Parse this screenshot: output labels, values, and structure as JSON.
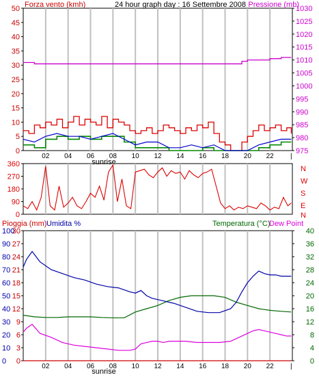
{
  "header": {
    "title": "24 hour graph day : 16 Settembre 2008",
    "wind_label": "Forza vento (kmh)",
    "pressure_label": "Pressione (mb)"
  },
  "lower_header": {
    "rain_label": "Pioggia (mm)",
    "humidity_label": "Umidita %",
    "temp_label": "Temperatura (°C)",
    "dew_label": "Dew Point"
  },
  "compass_letters": [
    "N",
    "W",
    "S",
    "E",
    "N"
  ],
  "sunrise_label": "sunrise",
  "colors": {
    "wind": "#cc0000",
    "gust": "#dd0000",
    "wind_avg": "#008800",
    "wind_blue": "#0000cc",
    "pressure": "#cc00cc",
    "direction": "#dd0000",
    "temperature": "#006600",
    "humidity": "#0000aa",
    "dewpoint": "#dd00dd",
    "rain": "#cc0000",
    "grid": "#c0c0c0"
  },
  "chart_data": [
    {
      "type": "line",
      "title": "24 hour graph day : 16 Settembre 2008",
      "xlabel": "",
      "x_tick_labels": [
        "02",
        "04",
        "06",
        "08",
        "10",
        "12",
        "14",
        "16",
        "18",
        "20",
        "22",
        "|"
      ],
      "ylabel_left": "Forza vento (kmh)",
      "ylabel_right": "Pressione (mb)",
      "ylim_left": [
        0,
        50
      ],
      "y_ticks_left": [
        0,
        5,
        10,
        15,
        20,
        25,
        30,
        35,
        40,
        45,
        50
      ],
      "ylim_right": [
        975,
        1030
      ],
      "y_ticks_right": [
        975,
        980,
        985,
        990,
        995,
        1000,
        1005,
        1010,
        1015,
        1020,
        1025,
        1030
      ],
      "grid": true,
      "series": [
        {
          "axis": "left",
          "x": [
            0,
            0.5,
            1.0,
            1.5,
            2.0,
            2.5,
            3.0,
            3.5,
            4.0,
            4.5,
            5.0,
            5.5,
            6.0,
            6.5,
            7.0,
            7.5,
            8.0,
            8.5,
            9.0,
            9.5,
            10.0,
            10.5,
            11.0,
            11.5,
            12.0,
            12.5,
            13.0,
            13.5,
            14.0,
            14.5,
            15.0,
            15.5,
            16.0,
            16.5,
            17.0,
            17.5,
            18.0,
            18.5,
            19.0,
            19.5,
            20.0,
            20.5,
            21.0,
            21.5,
            22.0,
            22.5,
            23.0,
            23.5,
            23.9
          ],
          "values": [
            7,
            6,
            9,
            8,
            10,
            9,
            11,
            8,
            10,
            12,
            9,
            11,
            10,
            9,
            12,
            8,
            11,
            10,
            9,
            7,
            6,
            7,
            8,
            6,
            7,
            9,
            8,
            7,
            6,
            8,
            7,
            9,
            8,
            10,
            6,
            3,
            2,
            0,
            0,
            3,
            5,
            7,
            9,
            7,
            8,
            9,
            7,
            8,
            6
          ]
        },
        {
          "axis": "left",
          "x": [
            0,
            1,
            2,
            3,
            4,
            5,
            6,
            7,
            8,
            9,
            10,
            11,
            12,
            13,
            14,
            15,
            16,
            17,
            18,
            19,
            20,
            21,
            22,
            23,
            23.9
          ],
          "values": [
            2,
            1,
            4,
            5,
            4,
            5,
            4,
            5,
            5,
            3,
            1,
            1,
            1,
            0,
            0,
            0,
            1,
            0,
            0,
            0,
            0,
            1,
            2,
            3,
            3
          ]
        },
        {
          "axis": "left",
          "x": [
            0,
            1,
            2,
            3,
            4,
            5,
            6,
            7,
            8,
            9,
            10,
            11,
            12,
            13,
            14,
            15,
            16,
            17,
            18,
            19,
            20,
            21,
            22,
            23,
            23.9
          ],
          "values": [
            4,
            3,
            5,
            6,
            5,
            5,
            4,
            5,
            6,
            4,
            2,
            3,
            3,
            1,
            1,
            2,
            1,
            2,
            0,
            0,
            0,
            2,
            3,
            4,
            4
          ]
        },
        {
          "axis": "right",
          "x": [
            0,
            0.8,
            1.0,
            6.0,
            12.0,
            17.5,
            18.0,
            18.5,
            19.0,
            19.5,
            20.0,
            21.0,
            22.0,
            23.0,
            23.9
          ],
          "values": [
            1009,
            1009,
            1008.5,
            1008.5,
            1008.5,
            1008.5,
            1008.5,
            1008.5,
            1008.5,
            1009.5,
            1010,
            1010,
            1010.5,
            1011,
            1011
          ]
        }
      ]
    },
    {
      "type": "line",
      "ylim": [
        0,
        360
      ],
      "y_ticks": [
        0,
        90,
        180,
        270,
        360
      ],
      "x_tick_labels": [
        "02",
        "04",
        "06",
        "08",
        "10",
        "12",
        "14",
        "16",
        "18",
        "20",
        "22",
        "|"
      ],
      "grid": true,
      "series": [
        {
          "x": [
            0,
            0.4,
            0.8,
            1.2,
            1.6,
            2.0,
            2.4,
            2.8,
            3.2,
            3.6,
            4.0,
            4.4,
            4.8,
            5.2,
            5.6,
            6.0,
            6.4,
            6.8,
            7.2,
            7.6,
            8.0,
            8.4,
            8.8,
            9.2,
            9.6,
            10.0,
            10.4,
            10.8,
            11.2,
            11.6,
            12.0,
            12.4,
            12.8,
            13.2,
            13.6,
            14.0,
            14.4,
            14.8,
            15.2,
            15.6,
            16.0,
            16.4,
            16.8,
            17.2,
            17.6,
            18.0,
            18.4,
            18.8,
            19.2,
            19.6,
            20.0,
            20.4,
            20.8,
            21.2,
            21.6,
            22.0,
            22.4,
            22.8,
            23.2,
            23.6,
            23.9
          ],
          "values": [
            60,
            40,
            90,
            30,
            120,
            340,
            60,
            30,
            200,
            50,
            80,
            120,
            60,
            40,
            90,
            150,
            120,
            200,
            100,
            300,
            350,
            90,
            250,
            60,
            40,
            300,
            310,
            320,
            280,
            260,
            300,
            330,
            270,
            310,
            290,
            300,
            250,
            310,
            280,
            260,
            290,
            300,
            320,
            200,
            80,
            40,
            60,
            30,
            50,
            40,
            60,
            50,
            40,
            80,
            60,
            30,
            50,
            40,
            120,
            60,
            80
          ]
        }
      ]
    },
    {
      "type": "line",
      "x_tick_labels": [
        "02",
        "04",
        "06",
        "08",
        "10",
        "12",
        "14",
        "16",
        "18",
        "20",
        "22",
        "|"
      ],
      "ylabel_left": "Pioggia (mm)",
      "ylabel_left2": "Umidita %",
      "ylabel_right": "Temperatura (°C)",
      "ylabel_right2": "Dew Point",
      "ylim_rain": [
        0,
        30
      ],
      "y_ticks_rain": [
        0,
        3,
        6,
        9,
        12,
        15,
        18,
        21,
        24,
        27,
        30
      ],
      "ylim_humidity": [
        0,
        100
      ],
      "y_ticks_humidity": [
        0,
        10,
        20,
        30,
        40,
        50,
        60,
        70,
        80,
        90,
        100
      ],
      "ylim_temp": [
        0,
        40
      ],
      "y_ticks_temp": [
        0,
        4,
        8,
        12,
        16,
        20,
        24,
        28,
        32,
        36,
        40
      ],
      "grid": true,
      "series": [
        {
          "axis": "temp",
          "x": [
            0,
            1,
            2,
            3,
            4,
            5,
            6,
            7,
            8,
            9,
            10,
            11,
            12,
            13,
            14,
            15,
            16,
            17,
            18,
            19,
            20,
            21,
            22,
            23,
            23.9
          ],
          "values": [
            14,
            13.5,
            13.3,
            13.3,
            13.5,
            13.5,
            13.5,
            13.3,
            13.2,
            13.2,
            15,
            16,
            17,
            18.5,
            19.5,
            20,
            20,
            20,
            19.5,
            18,
            17,
            16,
            15.5,
            15.2,
            15
          ]
        },
        {
          "axis": "humidity",
          "x": [
            0,
            0.3,
            0.8,
            1.5,
            2.5,
            3.5,
            4.5,
            5.5,
            6.5,
            7.5,
            8.5,
            9.5,
            10.0,
            10.5,
            11.0,
            11.5,
            12.0,
            12.5,
            13.0,
            13.5,
            14.5,
            15.5,
            16.5,
            17.5,
            18.5,
            19.0,
            19.5,
            20.0,
            20.5,
            21.0,
            21.5,
            22.0,
            22.5,
            23.0,
            23.5,
            23.9
          ],
          "values": [
            72,
            78,
            84,
            76,
            70,
            67,
            64,
            62,
            59,
            57,
            56,
            53,
            52,
            54,
            50,
            48,
            47,
            46,
            45,
            44,
            41,
            38,
            37,
            37,
            40,
            45,
            53,
            60,
            65,
            69,
            67,
            66,
            66,
            65,
            65,
            65
          ]
        },
        {
          "axis": "humidity",
          "x": [
            0,
            0.3,
            0.8,
            1.5,
            2.5,
            3.5,
            4.5,
            5.5,
            6.5,
            7.5,
            8.5,
            9.5,
            10.0,
            10.5,
            11.0,
            11.5,
            12.0,
            12.5,
            13.0,
            13.5,
            14.5,
            15.5,
            16.5,
            17.5,
            18.5,
            19.0,
            19.5,
            20.0,
            20.5,
            21.0,
            21.5,
            22.0,
            22.5,
            23.0,
            23.5,
            23.9
          ],
          "values": [
            22,
            25,
            28,
            21,
            18,
            14,
            12,
            11,
            10,
            9,
            8,
            8,
            9,
            13,
            14,
            15,
            15,
            14,
            15,
            15,
            15,
            14,
            14,
            14,
            15,
            17,
            19,
            21,
            23,
            24,
            23,
            22,
            21,
            20,
            19,
            19
          ]
        },
        {
          "axis": "rain",
          "x": [
            0,
            23.9
          ],
          "values": [
            0,
            0
          ]
        }
      ]
    }
  ]
}
